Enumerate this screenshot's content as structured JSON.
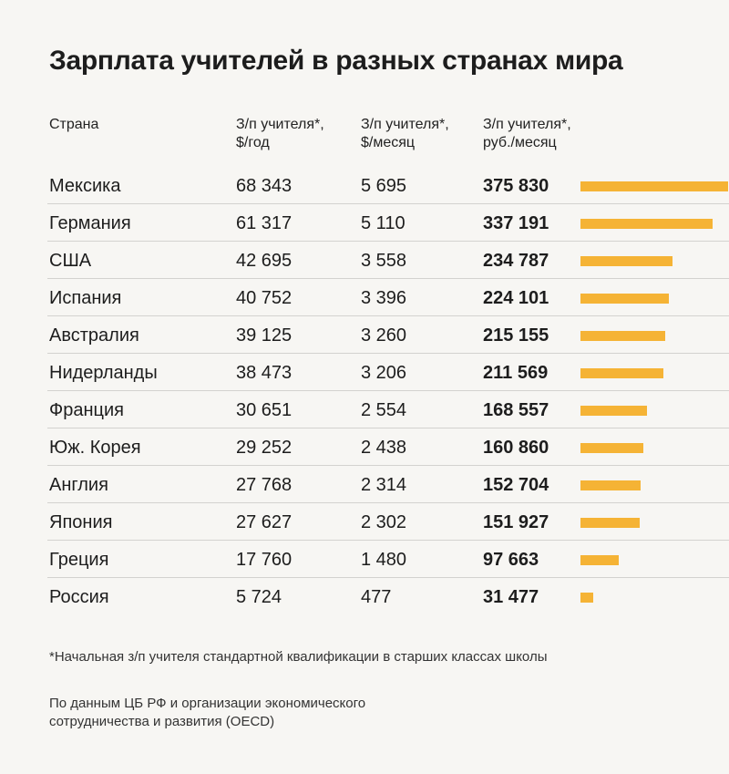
{
  "chart_data": {
    "type": "table",
    "title": "Зарплата учителей в разных странах мира",
    "columns": [
      "Страна",
      "З/п учителя*,\n$/год",
      "З/п учителя*,\n$/месяц",
      "З/п учителя*,\nруб./месяц"
    ],
    "bar_color": "#f5b335",
    "bar_max": 375830,
    "rows": [
      {
        "country": "Мексика",
        "usd_year": "68 343",
        "usd_month": "5 695",
        "rub_month": "375 830",
        "rub_value": 375830
      },
      {
        "country": "Германия",
        "usd_year": "61 317",
        "usd_month": "5 110",
        "rub_month": "337 191",
        "rub_value": 337191
      },
      {
        "country": "США",
        "usd_year": "42 695",
        "usd_month": "3 558",
        "rub_month": "234 787",
        "rub_value": 234787
      },
      {
        "country": "Испания",
        "usd_year": "40 752",
        "usd_month": "3 396",
        "rub_month": "224 101",
        "rub_value": 224101
      },
      {
        "country": "Австралия",
        "usd_year": "39 125",
        "usd_month": "3 260",
        "rub_month": "215 155",
        "rub_value": 215155
      },
      {
        "country": "Нидерланды",
        "usd_year": "38 473",
        "usd_month": "3 206",
        "rub_month": "211 569",
        "rub_value": 211569
      },
      {
        "country": "Франция",
        "usd_year": "30 651",
        "usd_month": "2 554",
        "rub_month": "168 557",
        "rub_value": 168557
      },
      {
        "country": "Юж. Корея",
        "usd_year": "29 252",
        "usd_month": "2 438",
        "rub_month": "160 860",
        "rub_value": 160860
      },
      {
        "country": "Англия",
        "usd_year": "27 768",
        "usd_month": "2 314",
        "rub_month": "152 704",
        "rub_value": 152704
      },
      {
        "country": "Япония",
        "usd_year": "27 627",
        "usd_month": "2 302",
        "rub_month": "151 927",
        "rub_value": 151927
      },
      {
        "country": "Греция",
        "usd_year": "17 760",
        "usd_month": "1 480",
        "rub_month": "97 663",
        "rub_value": 97663
      },
      {
        "country": "Россия",
        "usd_year": "5 724",
        "usd_month": "477",
        "rub_month": "31 477",
        "rub_value": 31477
      }
    ],
    "footnote": "*Начальная з/п учителя стандартной квалификации в старших классах школы",
    "source": "По данным ЦБ РФ и организации экономического\nсотрудничества и развития (OECD)"
  }
}
